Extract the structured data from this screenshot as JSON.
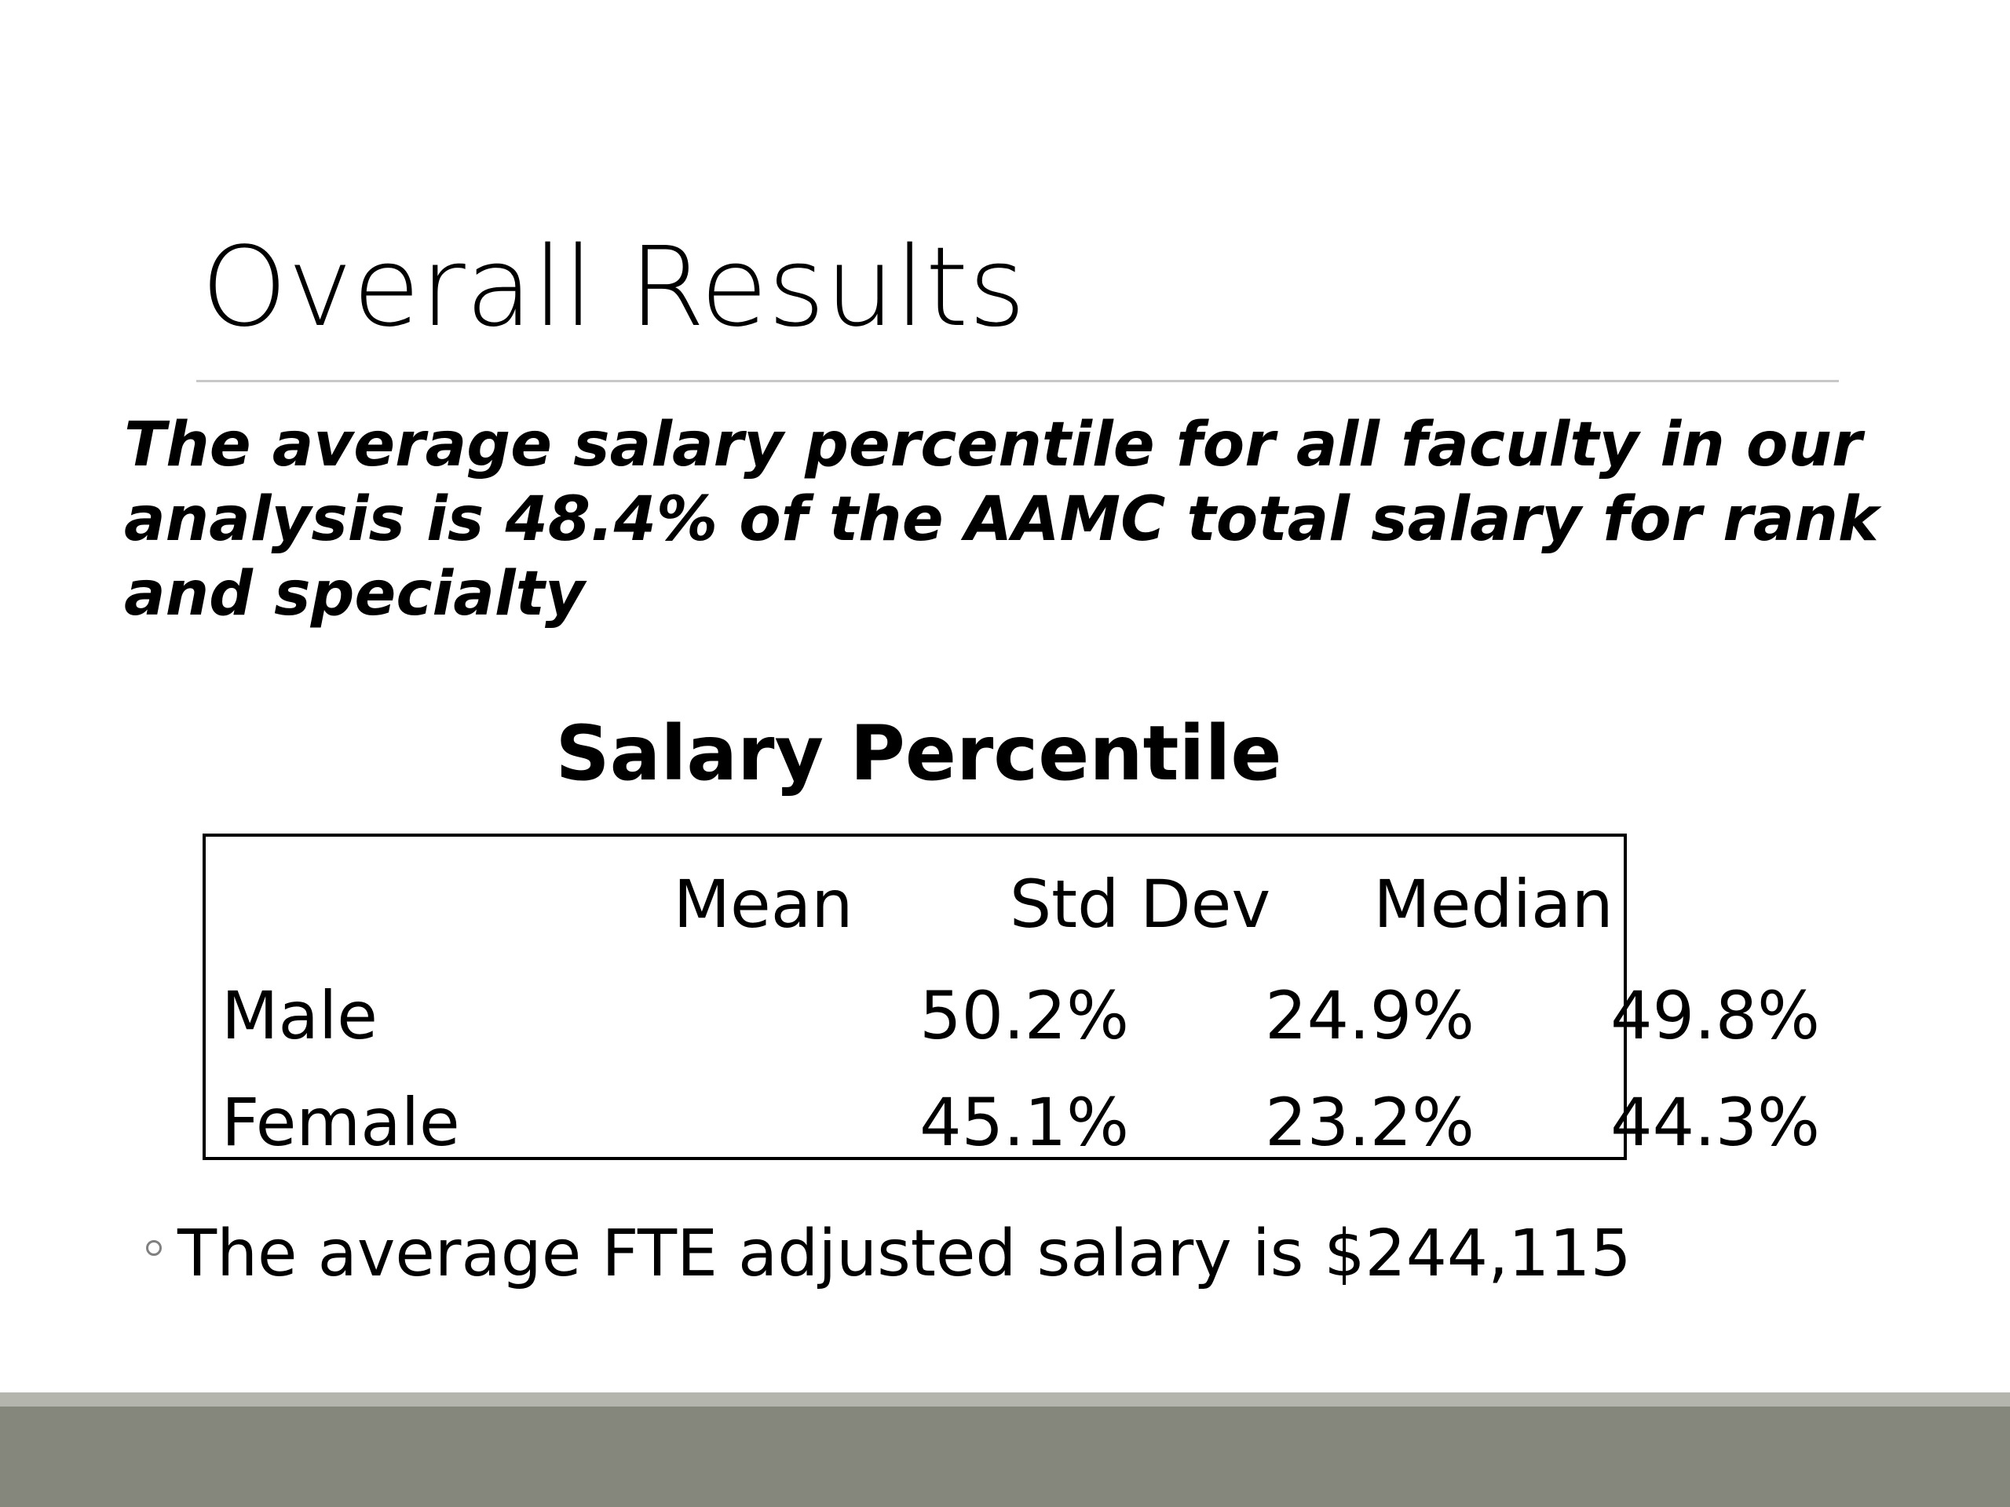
{
  "slide": {
    "title": "Overall Results",
    "summary": "The average salary percentile for all faculty in our analysis is 48.4% of the AAMC total salary for rank and specialty",
    "table": {
      "title": "Salary Percentile",
      "columns": [
        "Mean",
        "Std Dev",
        "Median"
      ],
      "rows": [
        {
          "label": "Male",
          "values": [
            "50.2%",
            "24.9%",
            "49.8%"
          ]
        },
        {
          "label": "Female",
          "values": [
            "45.1%",
            "23.2%",
            "44.3%"
          ]
        }
      ]
    },
    "bullets": [
      "The average FTE adjusted salary is $244,115"
    ]
  },
  "colors": {
    "footer_band": "#85877c",
    "footer_stripe": "#b4b5ac",
    "title_rule": "#c8c8c8",
    "bullet_mark": "#808080"
  }
}
